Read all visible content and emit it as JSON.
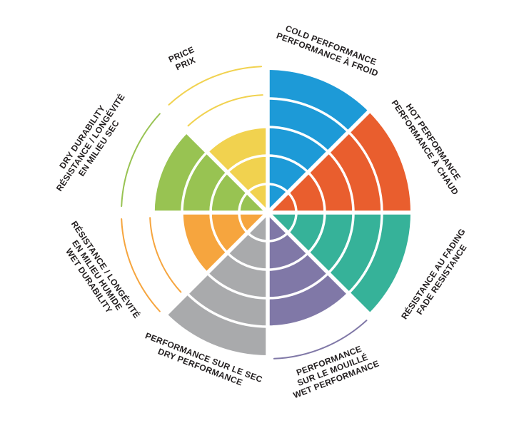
{
  "page": {
    "background_color": "#ffffff",
    "text_color": "#231f20"
  },
  "chart_data": {
    "type": "polar-sector-rating-wheel",
    "title": "",
    "rings": 5,
    "max_value": 5,
    "legend_position": "around-perimeter",
    "grid": "concentric-ring-lines",
    "sectors": [
      {
        "id": "cold-performance",
        "label_lines": [
          "COLD PERFORMANCE",
          "PERFORMANCE À FROID"
        ],
        "value": 5,
        "color": "#1d9ad7"
      },
      {
        "id": "hot-performance",
        "label_lines": [
          "HOT PERFORMANCE",
          "PERFORMANCE À CHAUD"
        ],
        "value": 5,
        "color": "#e95e2e"
      },
      {
        "id": "fade-resistance",
        "label_lines": [
          "RÉSISTANCE AU FADING",
          "FADE RESISTANCE"
        ],
        "value": 5,
        "color": "#36b299"
      },
      {
        "id": "wet-performance",
        "label_lines": [
          "PERFORMANCE",
          "SUR LE MOUILLÉ",
          "WET PERFORMANCE"
        ],
        "value": 4,
        "color": "#8078a7"
      },
      {
        "id": "dry-performance",
        "label_lines": [
          "PERFORMANCE SUR LE SEC",
          "DRY PERFORMANCE"
        ],
        "value": 5,
        "color": "#a9aaac"
      },
      {
        "id": "wet-durability",
        "label_lines": [
          "RÉSISTANCE / LONGÉVITÉ",
          "EN MILIEU HUMIDE",
          "WET DURABILITY"
        ],
        "value": 3,
        "color": "#f6a53e"
      },
      {
        "id": "dry-durability",
        "label_lines": [
          "DRY DURABILITY",
          "RÉSISTANCE / LONGÉVITÉ",
          "EN MILIEU SEC"
        ],
        "value": 4,
        "color": "#98c352"
      },
      {
        "id": "price",
        "label_lines": [
          "PRICE",
          "PRIX"
        ],
        "value": 3,
        "color": "#f1d24f"
      }
    ]
  }
}
